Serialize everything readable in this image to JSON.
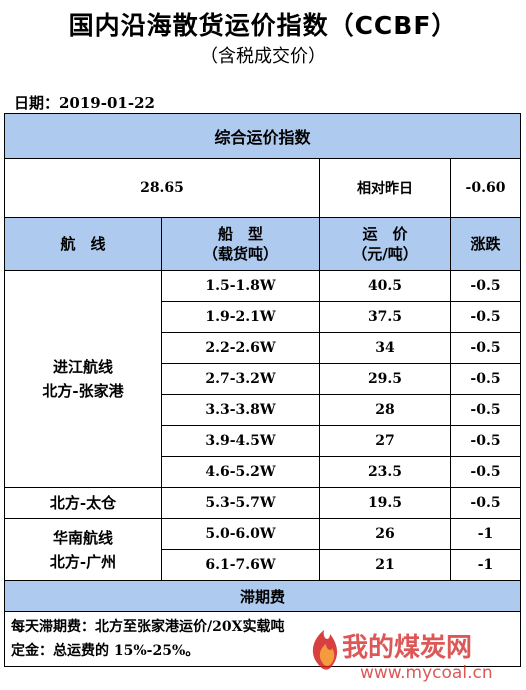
{
  "header": {
    "title": "国内沿海散货运价指数（CCBF）",
    "subtitle": "（含税成交价）",
    "date": "日期：2019-01-22"
  },
  "table": {
    "section_title": "综合运价指数",
    "index_value": "28.65",
    "relative_label": "相对昨日",
    "relative_change": "-0.60",
    "columns": {
      "route": "航　线",
      "ship_type_line1": "船　型",
      "ship_type_line2": "（载货吨）",
      "freight_line1": "运　价",
      "freight_line2": "（元/吨）",
      "change": "涨跌"
    },
    "groups": [
      {
        "route_line1": "进江航线",
        "route_line2": "北方-张家港",
        "rows": [
          {
            "ship": "1.5-1.8W",
            "price": "40.5",
            "change": "-0.5"
          },
          {
            "ship": "1.9-2.1W",
            "price": "37.5",
            "change": "-0.5"
          },
          {
            "ship": "2.2-2.6W",
            "price": "34",
            "change": "-0.5"
          },
          {
            "ship": "2.7-3.2W",
            "price": "29.5",
            "change": "-0.5"
          },
          {
            "ship": "3.3-3.8W",
            "price": "28",
            "change": "-0.5"
          },
          {
            "ship": "3.9-4.5W",
            "price": "27",
            "change": "-0.5"
          },
          {
            "ship": "4.6-5.2W",
            "price": "23.5",
            "change": "-0.5"
          }
        ]
      },
      {
        "route_line1": "北方-太仓",
        "route_line2": "",
        "rows": [
          {
            "ship": "5.3-5.7W",
            "price": "19.5",
            "change": "-0.5"
          }
        ]
      },
      {
        "route_line1": "华南航线",
        "route_line2": "北方-广州",
        "rows": [
          {
            "ship": "5.0-6.0W",
            "price": "26",
            "change": "-1"
          },
          {
            "ship": "6.1-7.6W",
            "price": "21",
            "change": "-1"
          }
        ]
      }
    ],
    "demurrage_title": "滞期费",
    "demurrage_note_line1": "每天滞期费：北方至张家港运价/20X实载吨",
    "demurrage_note_line2": "定金：总运费的 15%-25%。"
  },
  "watermark": {
    "brand": "我的煤炭网",
    "url": "www.mycoal.cn"
  },
  "colors": {
    "header_fill": "#aecbef",
    "logo_red": "#d21f1f"
  }
}
